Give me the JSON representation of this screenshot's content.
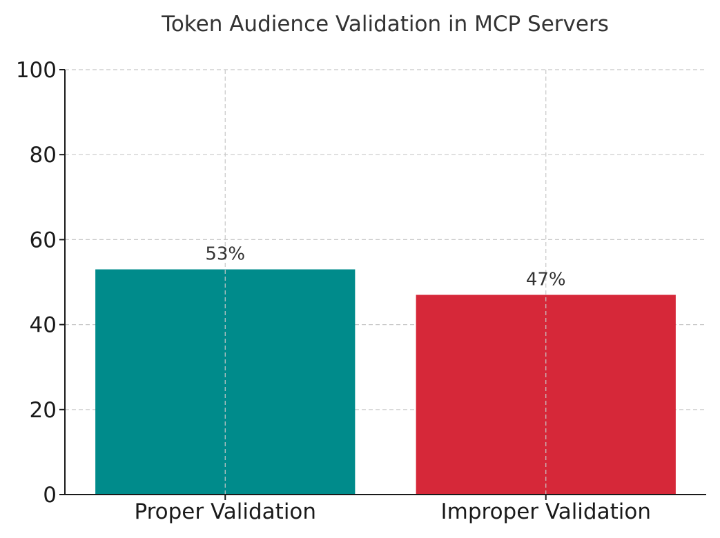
{
  "chart_data": {
    "type": "bar",
    "title": "Token Audience Validation in MCP Servers",
    "xlabel": "",
    "ylabel": "",
    "categories": [
      "Proper Validation",
      "Improper Validation"
    ],
    "values": [
      53,
      47
    ],
    "value_labels": [
      "53%",
      "47%"
    ],
    "colors": [
      "#008b8b",
      "#d62839"
    ],
    "ylim": [
      0,
      100
    ],
    "yticks": [
      0,
      20,
      40,
      60,
      80,
      100
    ],
    "grid": true
  }
}
